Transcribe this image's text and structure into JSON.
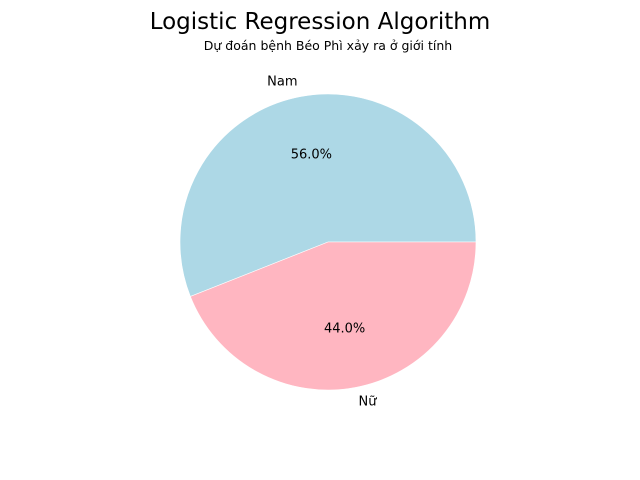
{
  "chart_data": {
    "type": "pie",
    "title": "Logistic Regression Algorithm",
    "subtitle": "Dự đoán bệnh Béo Phì xảy ra ở  giới tính",
    "slices": [
      {
        "label": "Nam",
        "value": 56.0,
        "percent_label": "56.0%",
        "color": "#add8e6"
      },
      {
        "label": "Nữ",
        "value": 44.0,
        "percent_label": "44.0%",
        "color": "#ffb6c1"
      }
    ],
    "start_angle_deg": 0,
    "direction": "counterclockwise",
    "legend": "none"
  }
}
